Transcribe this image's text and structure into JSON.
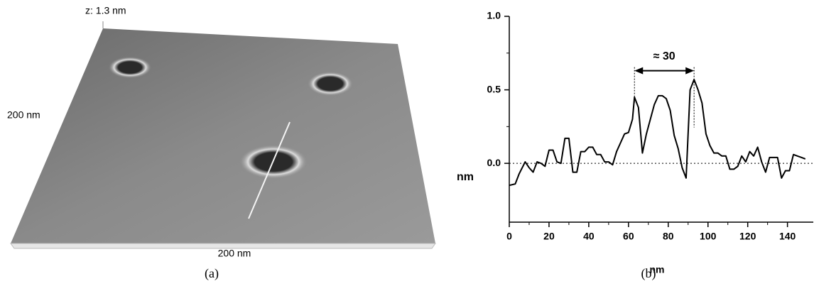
{
  "panel_a": {
    "z_label": "z: 1.3 nm",
    "y_label": "200 nm",
    "x_label": "200 nm",
    "caption": "(a)"
  },
  "chart_data": {
    "type": "line",
    "caption": "(b)",
    "xlabel": "nm",
    "ylabel": "nm",
    "xlim": [
      0,
      153
    ],
    "ylim": [
      -0.4,
      1.0
    ],
    "xticks": [
      0,
      20,
      40,
      60,
      80,
      100,
      120,
      140
    ],
    "yticks": [
      {
        "value": 0,
        "label": "0.0"
      },
      {
        "value": 0.5,
        "label": "0.5"
      },
      {
        "value": 1,
        "label": "1.0"
      }
    ],
    "baseline": 0,
    "annotation": {
      "text": "≈ 30",
      "x_start": 63,
      "x_end": 93,
      "y": 0.63
    },
    "series": [
      {
        "color": "#000000",
        "x": [
          0,
          3,
          5,
          8,
          10,
          12,
          14,
          16,
          18,
          20,
          22,
          24,
          26,
          28,
          30,
          32,
          34,
          36,
          38,
          40,
          42,
          44,
          46,
          48,
          50,
          52,
          54,
          56,
          58,
          60,
          62,
          63,
          65,
          67,
          69,
          71,
          73,
          75,
          77,
          79,
          81,
          83,
          85,
          87,
          89,
          91,
          93,
          95,
          97,
          99,
          101,
          103,
          105,
          107,
          109,
          111,
          113,
          115,
          117,
          119,
          121,
          123,
          125,
          127,
          129,
          131,
          133,
          135,
          137,
          139,
          141,
          143,
          145,
          147,
          149
        ],
        "values": [
          -0.15,
          -0.14,
          -0.07,
          0.01,
          -0.03,
          -0.06,
          0.01,
          0.0,
          -0.02,
          0.09,
          0.09,
          0.01,
          0.0,
          0.17,
          0.17,
          -0.06,
          -0.06,
          0.08,
          0.08,
          0.11,
          0.11,
          0.06,
          0.06,
          0.01,
          0.01,
          -0.01,
          0.08,
          0.14,
          0.2,
          0.21,
          0.3,
          0.45,
          0.38,
          0.07,
          0.2,
          0.3,
          0.4,
          0.46,
          0.46,
          0.44,
          0.36,
          0.19,
          0.1,
          -0.03,
          -0.1,
          0.5,
          0.57,
          0.5,
          0.41,
          0.2,
          0.12,
          0.07,
          0.07,
          0.05,
          0.05,
          -0.04,
          -0.04,
          -0.02,
          0.05,
          0.01,
          0.08,
          0.05,
          0.11,
          0.01,
          -0.06,
          0.04,
          0.04,
          0.04,
          -0.1,
          -0.05,
          -0.05,
          0.06,
          0.05,
          0.04,
          0.03
        ]
      }
    ]
  }
}
